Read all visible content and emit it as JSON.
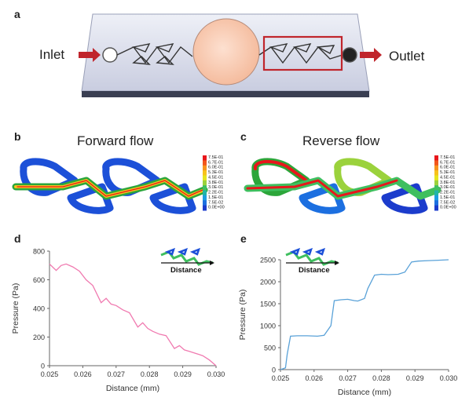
{
  "panels": {
    "a": "a",
    "b": "b",
    "c": "c",
    "d": "d",
    "e": "e"
  },
  "device": {
    "inlet": "Inlet",
    "outlet": "Outlet"
  },
  "sim": {
    "forward_title": "Forward flow",
    "reverse_title": "Reverse flow",
    "scale_labels": [
      "7.5E-01",
      "6.7E-01",
      "6.0E-01",
      "5.3E-01",
      "4.5E-01",
      "3.8E-01",
      "3.0E-01",
      "2.2E-01",
      "1.5E-01",
      "7.5E-02",
      "0.0E+00"
    ],
    "scale_colors": [
      "#e8161b",
      "#f2561c",
      "#f7941d",
      "#f7c21c",
      "#e5e51e",
      "#9bd23c",
      "#3fbf5f",
      "#22b5a8",
      "#1d9fe0",
      "#1c6fe0",
      "#1c3ccc"
    ]
  },
  "chart_data": [
    {
      "type": "line",
      "title": "",
      "xlabel": "Distance (mm)",
      "ylabel": "Pressure (Pa)",
      "xlim": [
        0.025,
        0.03
      ],
      "ylim": [
        0,
        800
      ],
      "xticks": [
        "0.025",
        "0.026",
        "0.027",
        "0.028",
        "0.029",
        "0.030"
      ],
      "yticks": [
        "0",
        "200",
        "400",
        "600",
        "800"
      ],
      "inset_label": "Distance",
      "color": "#f07ab0",
      "series": [
        {
          "x": [
            0.025,
            0.0252,
            0.02535,
            0.0255,
            0.0257,
            0.0259,
            0.0261,
            0.0263,
            0.02655,
            0.0267,
            0.02685,
            0.027,
            0.0272,
            0.0274,
            0.02765,
            0.0278,
            0.02795,
            0.0281,
            0.0283,
            0.0285,
            0.02875,
            0.0289,
            0.02905,
            0.0292,
            0.0294,
            0.0296,
            0.0298,
            0.03
          ],
          "y": [
            710,
            665,
            700,
            710,
            690,
            660,
            600,
            560,
            440,
            470,
            430,
            420,
            390,
            370,
            270,
            300,
            260,
            240,
            220,
            210,
            120,
            140,
            110,
            100,
            85,
            70,
            40,
            0
          ]
        }
      ]
    },
    {
      "type": "line",
      "title": "",
      "xlabel": "Distance (mm)",
      "ylabel": "Pressure (Pa)",
      "xlim": [
        0.025,
        0.03
      ],
      "ylim": [
        0,
        2500
      ],
      "xticks": [
        "0.025",
        "0.026",
        "0.027",
        "0.028",
        "0.029",
        "0.030"
      ],
      "yticks": [
        "0",
        "500",
        "1000",
        "1500",
        "2000",
        "2500"
      ],
      "inset_label": "Distance",
      "color": "#5aa2d8",
      "series": [
        {
          "x": [
            0.025,
            0.02515,
            0.0252,
            0.0253,
            0.0255,
            0.0258,
            0.0261,
            0.0263,
            0.0265,
            0.0266,
            0.0268,
            0.027,
            0.0272,
            0.0273,
            0.0275,
            0.0276,
            0.0278,
            0.028,
            0.0282,
            0.0285,
            0.0287,
            0.0289,
            0.0291,
            0.0294,
            0.0297,
            0.03
          ],
          "y": [
            0,
            40,
            350,
            760,
            770,
            770,
            760,
            780,
            1000,
            1570,
            1590,
            1600,
            1570,
            1560,
            1620,
            1850,
            2150,
            2170,
            2160,
            2170,
            2220,
            2450,
            2470,
            2480,
            2490,
            2500
          ]
        }
      ]
    }
  ]
}
